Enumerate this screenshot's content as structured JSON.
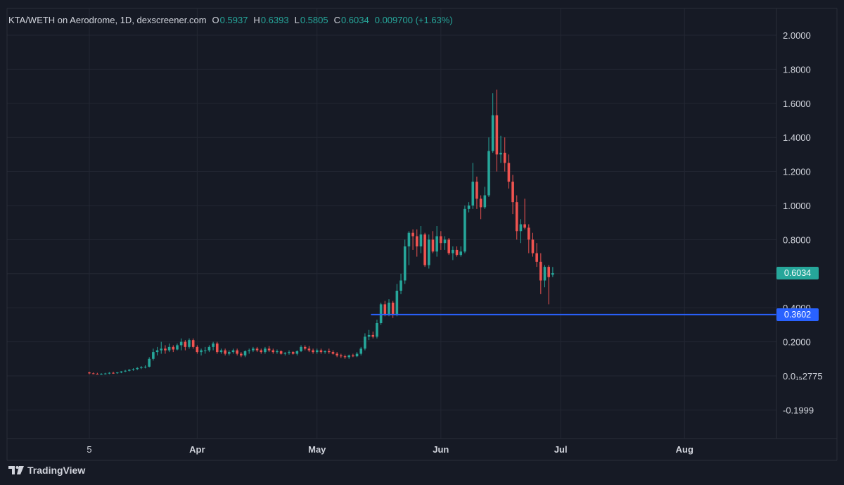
{
  "legend": {
    "title": "KTA/WETH on Aerodrome, 1D, dexscreener.com",
    "open_label": "O",
    "open": "0.5937",
    "high_label": "H",
    "high": "0.6393",
    "low_label": "L",
    "low": "0.5805",
    "close_label": "C",
    "close": "0.6034",
    "change": "0.009700 (+1.63%)"
  },
  "brand": {
    "name": "TradingView",
    "logo_icon": "tradingview-logo-icon"
  },
  "badges": {
    "last_price": "0.6034",
    "horizontal_line": "0.3602"
  },
  "colors": {
    "background": "#161a25",
    "grid": "#232733",
    "up": "#26a69a",
    "down": "#ef5350",
    "line": "#2962ff",
    "text": "#d1d4dc"
  },
  "chart_data": {
    "type": "candlestick",
    "x_tick_labels": [
      "5",
      "Apr",
      "May",
      "Jun",
      "Jul",
      "Aug"
    ],
    "y_tick_labels": [
      "2.0000",
      "1.8000",
      "1.6000",
      "1.4000",
      "1.2000",
      "1.0000",
      "0.8000",
      "0.6000",
      "0.4000",
      "0.2000",
      "0.0₁₅2775",
      "-0.1999"
    ],
    "y_range": [
      -0.28,
      2.1
    ],
    "horizontal_line": 0.3602,
    "last_price": 0.6034,
    "start_date": "2025-03-05",
    "candles": [
      [
        0.02,
        0.025,
        0.01,
        0.015
      ],
      [
        0.015,
        0.02,
        0.01,
        0.012
      ],
      [
        0.012,
        0.018,
        0.008,
        0.01
      ],
      [
        0.01,
        0.016,
        0.006,
        0.012
      ],
      [
        0.012,
        0.018,
        0.008,
        0.014
      ],
      [
        0.014,
        0.022,
        0.01,
        0.018
      ],
      [
        0.018,
        0.024,
        0.012,
        0.016
      ],
      [
        0.016,
        0.022,
        0.012,
        0.02
      ],
      [
        0.02,
        0.028,
        0.016,
        0.026
      ],
      [
        0.026,
        0.035,
        0.022,
        0.03
      ],
      [
        0.03,
        0.04,
        0.026,
        0.036
      ],
      [
        0.036,
        0.045,
        0.03,
        0.04
      ],
      [
        0.04,
        0.052,
        0.034,
        0.046
      ],
      [
        0.046,
        0.058,
        0.04,
        0.05
      ],
      [
        0.05,
        0.062,
        0.044,
        0.054
      ],
      [
        0.054,
        0.11,
        0.05,
        0.1
      ],
      [
        0.1,
        0.16,
        0.09,
        0.14
      ],
      [
        0.14,
        0.17,
        0.12,
        0.15
      ],
      [
        0.15,
        0.2,
        0.13,
        0.16
      ],
      [
        0.16,
        0.18,
        0.13,
        0.15
      ],
      [
        0.15,
        0.19,
        0.14,
        0.17
      ],
      [
        0.17,
        0.18,
        0.14,
        0.155
      ],
      [
        0.155,
        0.19,
        0.15,
        0.18
      ],
      [
        0.18,
        0.22,
        0.15,
        0.2
      ],
      [
        0.2,
        0.21,
        0.15,
        0.17
      ],
      [
        0.17,
        0.22,
        0.16,
        0.21
      ],
      [
        0.21,
        0.22,
        0.16,
        0.17
      ],
      [
        0.17,
        0.18,
        0.13,
        0.14
      ],
      [
        0.14,
        0.16,
        0.12,
        0.15
      ],
      [
        0.15,
        0.17,
        0.13,
        0.15
      ],
      [
        0.15,
        0.18,
        0.14,
        0.17
      ],
      [
        0.17,
        0.2,
        0.15,
        0.19
      ],
      [
        0.19,
        0.2,
        0.13,
        0.14
      ],
      [
        0.14,
        0.16,
        0.13,
        0.15
      ],
      [
        0.15,
        0.16,
        0.12,
        0.13
      ],
      [
        0.13,
        0.15,
        0.12,
        0.14
      ],
      [
        0.14,
        0.16,
        0.13,
        0.15
      ],
      [
        0.15,
        0.16,
        0.12,
        0.13
      ],
      [
        0.13,
        0.14,
        0.11,
        0.12
      ],
      [
        0.12,
        0.15,
        0.11,
        0.145
      ],
      [
        0.145,
        0.16,
        0.13,
        0.15
      ],
      [
        0.15,
        0.17,
        0.14,
        0.16
      ],
      [
        0.16,
        0.17,
        0.14,
        0.15
      ],
      [
        0.15,
        0.16,
        0.13,
        0.14
      ],
      [
        0.14,
        0.17,
        0.13,
        0.16
      ],
      [
        0.16,
        0.175,
        0.14,
        0.15
      ],
      [
        0.15,
        0.16,
        0.13,
        0.14
      ],
      [
        0.14,
        0.155,
        0.13,
        0.145
      ],
      [
        0.145,
        0.15,
        0.125,
        0.13
      ],
      [
        0.13,
        0.14,
        0.12,
        0.135
      ],
      [
        0.135,
        0.15,
        0.125,
        0.14
      ],
      [
        0.14,
        0.145,
        0.125,
        0.13
      ],
      [
        0.13,
        0.15,
        0.12,
        0.145
      ],
      [
        0.145,
        0.18,
        0.14,
        0.17
      ],
      [
        0.17,
        0.18,
        0.15,
        0.16
      ],
      [
        0.16,
        0.175,
        0.14,
        0.15
      ],
      [
        0.15,
        0.16,
        0.13,
        0.14
      ],
      [
        0.14,
        0.16,
        0.13,
        0.15
      ],
      [
        0.15,
        0.16,
        0.13,
        0.14
      ],
      [
        0.14,
        0.15,
        0.13,
        0.145
      ],
      [
        0.145,
        0.16,
        0.13,
        0.14
      ],
      [
        0.14,
        0.15,
        0.125,
        0.13
      ],
      [
        0.13,
        0.14,
        0.11,
        0.12
      ],
      [
        0.12,
        0.13,
        0.105,
        0.115
      ],
      [
        0.115,
        0.125,
        0.1,
        0.11
      ],
      [
        0.11,
        0.125,
        0.1,
        0.12
      ],
      [
        0.12,
        0.13,
        0.11,
        0.115
      ],
      [
        0.115,
        0.14,
        0.11,
        0.13
      ],
      [
        0.13,
        0.17,
        0.12,
        0.16
      ],
      [
        0.16,
        0.25,
        0.15,
        0.23
      ],
      [
        0.23,
        0.27,
        0.21,
        0.24
      ],
      [
        0.24,
        0.26,
        0.22,
        0.23
      ],
      [
        0.23,
        0.33,
        0.22,
        0.31
      ],
      [
        0.31,
        0.43,
        0.3,
        0.42
      ],
      [
        0.42,
        0.44,
        0.35,
        0.36
      ],
      [
        0.36,
        0.45,
        0.35,
        0.43
      ],
      [
        0.43,
        0.44,
        0.34,
        0.36
      ],
      [
        0.36,
        0.54,
        0.35,
        0.5
      ],
      [
        0.5,
        0.6,
        0.48,
        0.56
      ],
      [
        0.56,
        0.8,
        0.54,
        0.76
      ],
      [
        0.76,
        0.85,
        0.65,
        0.84
      ],
      [
        0.84,
        0.86,
        0.74,
        0.82
      ],
      [
        0.82,
        0.86,
        0.7,
        0.76
      ],
      [
        0.76,
        0.88,
        0.72,
        0.83
      ],
      [
        0.83,
        0.84,
        0.64,
        0.65
      ],
      [
        0.65,
        0.83,
        0.63,
        0.8
      ],
      [
        0.8,
        0.85,
        0.72,
        0.73
      ],
      [
        0.73,
        0.88,
        0.7,
        0.82
      ],
      [
        0.82,
        0.85,
        0.74,
        0.78
      ],
      [
        0.78,
        0.82,
        0.74,
        0.8
      ],
      [
        0.8,
        0.81,
        0.71,
        0.72
      ],
      [
        0.72,
        0.76,
        0.68,
        0.74
      ],
      [
        0.74,
        0.76,
        0.7,
        0.71
      ],
      [
        0.71,
        0.76,
        0.7,
        0.73
      ],
      [
        0.73,
        1.0,
        0.72,
        0.98
      ],
      [
        0.98,
        1.02,
        0.96,
        1.0
      ],
      [
        1.0,
        1.25,
        0.98,
        1.14
      ],
      [
        1.14,
        1.17,
        0.98,
        1.04
      ],
      [
        1.04,
        1.06,
        0.92,
        0.99
      ],
      [
        0.99,
        1.11,
        0.98,
        1.06
      ],
      [
        1.06,
        1.4,
        1.05,
        1.32
      ],
      [
        1.32,
        1.66,
        1.31,
        1.53
      ],
      [
        1.53,
        1.68,
        1.2,
        1.3
      ],
      [
        1.3,
        1.41,
        1.25,
        1.31
      ],
      [
        1.31,
        1.4,
        1.2,
        1.25
      ],
      [
        1.25,
        1.3,
        1.1,
        1.14
      ],
      [
        1.14,
        1.18,
        0.95,
        1.02
      ],
      [
        1.02,
        1.06,
        0.8,
        0.85
      ],
      [
        0.85,
        0.92,
        0.78,
        0.89
      ],
      [
        0.89,
        1.04,
        0.86,
        0.87
      ],
      [
        0.87,
        0.89,
        0.72,
        0.8
      ],
      [
        0.8,
        0.84,
        0.7,
        0.72
      ],
      [
        0.72,
        0.78,
        0.64,
        0.67
      ],
      [
        0.67,
        0.72,
        0.48,
        0.56
      ],
      [
        0.56,
        0.65,
        0.52,
        0.64
      ],
      [
        0.64,
        0.65,
        0.42,
        0.58
      ],
      [
        0.5937,
        0.6393,
        0.5805,
        0.6034
      ]
    ]
  }
}
